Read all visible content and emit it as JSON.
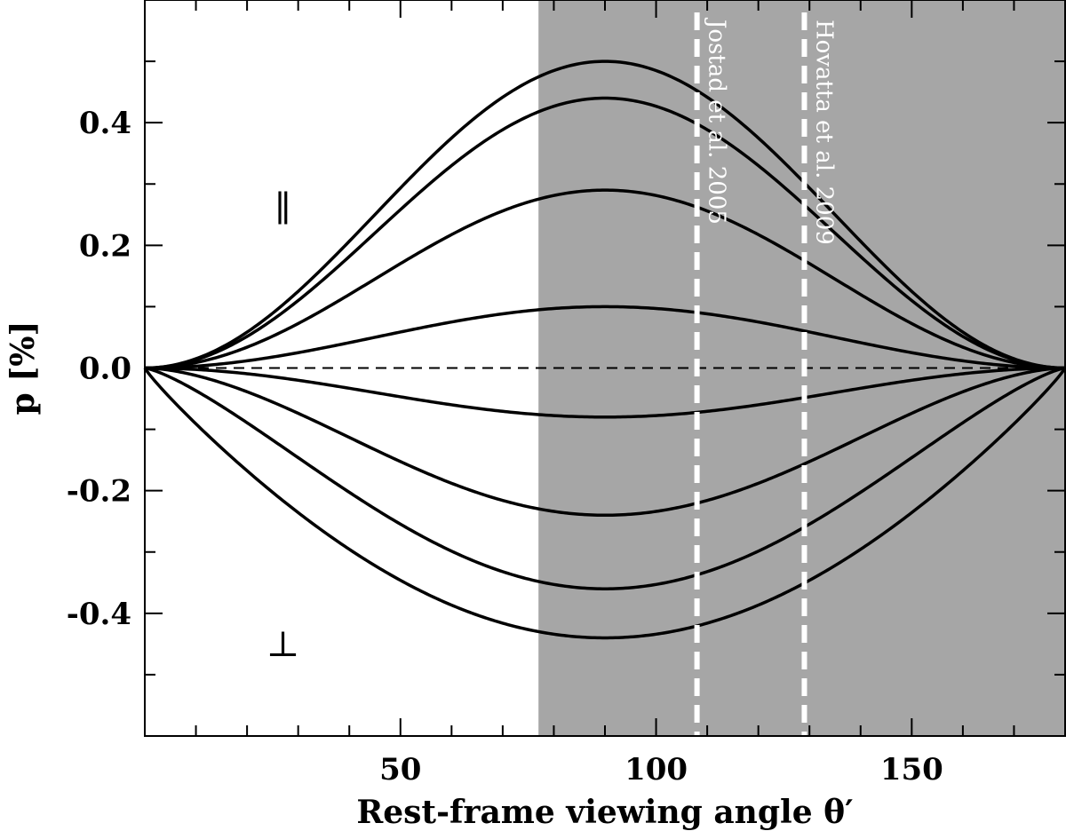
{
  "chart_data": {
    "type": "line",
    "xlabel": "Rest-frame viewing angle θ′",
    "ylabel": "p [%]",
    "xlim": [
      0,
      180
    ],
    "ylim": [
      -0.6,
      0.6
    ],
    "x_ticks": [
      50,
      100,
      150
    ],
    "y_ticks": [
      0.4,
      0.2,
      0.0,
      -0.2,
      -0.4
    ],
    "y_tick_labels": [
      "0.4",
      "0.2",
      "0.0",
      "-0.2",
      "-0.4"
    ],
    "shaded_region": {
      "x_start": 77,
      "x_end": 180,
      "color": "#a6a6a6"
    },
    "reference_lines": [
      {
        "x": 108,
        "label": "Jostad et al. 2005"
      },
      {
        "x": 129,
        "label": "Hovatta et al. 2009"
      }
    ],
    "region_labels": {
      "parallel": "∥",
      "perpendicular": "⊥"
    },
    "zero_line": {
      "y": 0.0,
      "style": "dashed"
    },
    "series": [
      {
        "peak": 0.5,
        "shape": "sin2"
      },
      {
        "peak": 0.44,
        "shape": "sin2"
      },
      {
        "peak": 0.29,
        "shape": "sin2"
      },
      {
        "peak": 0.1,
        "shape": "sin2"
      },
      {
        "peak": -0.08,
        "shape": "sin2"
      },
      {
        "peak": -0.24,
        "shape": "flat2"
      },
      {
        "peak": -0.36,
        "shape": "flat3"
      },
      {
        "peak": -0.44,
        "shape": "flat4"
      }
    ],
    "colors": {
      "line": "#000000",
      "reference": "#ffffff"
    }
  }
}
